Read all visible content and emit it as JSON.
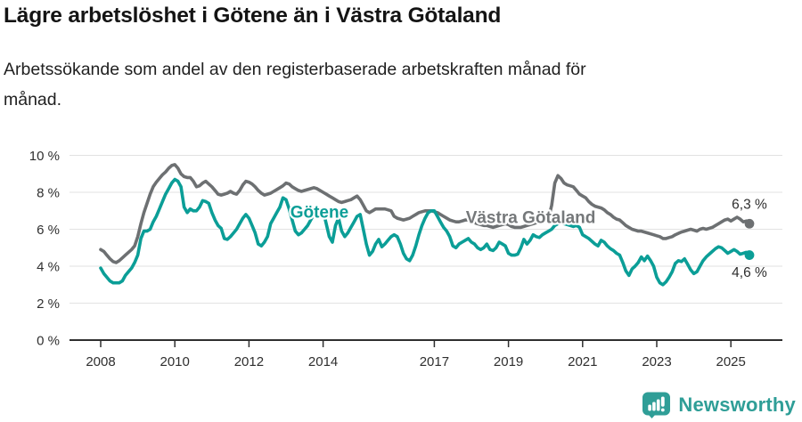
{
  "header": {
    "title": "Lägre arbetslöshet i Götene än i Västra Götaland",
    "subtitle_lines": [
      "Arbetssökande som andel av den registerbaserade arbetskraften månad för",
      "månad."
    ]
  },
  "chart_data": {
    "type": "line",
    "title": "Lägre arbetslöshet i Götene än i Västra Götaland",
    "subtitle": "Arbetssökande som andel av den registerbaserade arbetskraften månad för månad.",
    "x_unit": "monthly, decimal years",
    "x_start_year": 2008,
    "points_per_year": 12,
    "x_end": "2025-07",
    "ylim": [
      0,
      10
    ],
    "grid": true,
    "axis_color": "#2f2f2f",
    "grid_color": "#e2e2e2",
    "y_ticks": [
      {
        "v": 0,
        "label": "0 %"
      },
      {
        "v": 2,
        "label": "2 %"
      },
      {
        "v": 4,
        "label": "4 %"
      },
      {
        "v": 6,
        "label": "6 %"
      },
      {
        "v": 8,
        "label": "8 %"
      },
      {
        "v": 10,
        "label": "10 %"
      }
    ],
    "x_ticks": [
      {
        "v": 2008,
        "label": "2008"
      },
      {
        "v": 2010,
        "label": "2010"
      },
      {
        "v": 2012,
        "label": "2012"
      },
      {
        "v": 2014,
        "label": "2014"
      },
      {
        "v": 2017,
        "label": "2017"
      },
      {
        "v": 2019,
        "label": "2019"
      },
      {
        "v": 2021,
        "label": "2021"
      },
      {
        "v": 2023,
        "label": "2023"
      },
      {
        "v": 2025,
        "label": "2025"
      }
    ],
    "series": [
      {
        "name": "Västra Götaland",
        "slug": "vastra-gotaland",
        "color": "#6d7072",
        "label_color": "#75787a",
        "label_anchor": {
          "x": 2019.6,
          "y": 6.33
        },
        "end_label": "6,3 %",
        "end_label_anchor": {
          "x": 2025.5,
          "y": 7.1
        },
        "end_value": 6.3,
        "values": [
          4.9,
          4.8,
          4.6,
          4.4,
          4.25,
          4.2,
          4.3,
          4.45,
          4.6,
          4.75,
          4.9,
          5.1,
          5.6,
          6.3,
          6.9,
          7.4,
          7.9,
          8.3,
          8.55,
          8.75,
          8.95,
          9.1,
          9.3,
          9.45,
          9.5,
          9.3,
          9.0,
          8.85,
          8.8,
          8.8,
          8.6,
          8.3,
          8.35,
          8.5,
          8.6,
          8.45,
          8.3,
          8.1,
          7.9,
          7.85,
          7.9,
          7.95,
          8.05,
          7.95,
          7.9,
          8.1,
          8.4,
          8.6,
          8.55,
          8.45,
          8.3,
          8.1,
          7.95,
          7.85,
          7.9,
          7.95,
          8.05,
          8.15,
          8.25,
          8.35,
          8.5,
          8.45,
          8.3,
          8.2,
          8.1,
          8.05,
          8.1,
          8.15,
          8.2,
          8.25,
          8.2,
          8.1,
          8.0,
          7.9,
          7.8,
          7.7,
          7.6,
          7.5,
          7.45,
          7.5,
          7.55,
          7.6,
          7.7,
          7.8,
          7.6,
          7.3,
          7.0,
          6.9,
          7.0,
          7.1,
          7.1,
          7.1,
          7.1,
          7.05,
          7.0,
          6.7,
          6.6,
          6.55,
          6.5,
          6.55,
          6.6,
          6.7,
          6.8,
          6.9,
          6.95,
          7.0,
          7.0,
          7.0,
          6.95,
          6.9,
          6.8,
          6.7,
          6.6,
          6.5,
          6.45,
          6.4,
          6.4,
          6.45,
          6.5,
          6.5,
          6.4,
          6.35,
          6.3,
          6.25,
          6.2,
          6.2,
          6.15,
          6.1,
          6.15,
          6.2,
          6.25,
          6.3,
          6.25,
          6.15,
          6.1,
          6.1,
          6.1,
          6.15,
          6.2,
          6.25,
          6.3,
          6.35,
          6.4,
          6.45,
          6.5,
          6.6,
          7.3,
          8.5,
          8.9,
          8.75,
          8.5,
          8.4,
          8.35,
          8.3,
          8.1,
          7.9,
          7.8,
          7.7,
          7.5,
          7.35,
          7.25,
          7.2,
          7.15,
          7.05,
          6.9,
          6.8,
          6.65,
          6.55,
          6.5,
          6.35,
          6.2,
          6.1,
          6.0,
          5.95,
          5.9,
          5.9,
          5.85,
          5.8,
          5.75,
          5.7,
          5.65,
          5.6,
          5.5,
          5.5,
          5.55,
          5.6,
          5.7,
          5.78,
          5.85,
          5.9,
          5.95,
          6.0,
          5.95,
          5.9,
          6.0,
          6.05,
          6.0,
          6.05,
          6.1,
          6.2,
          6.3,
          6.4,
          6.5,
          6.55,
          6.45,
          6.55,
          6.65,
          6.55,
          6.4,
          6.45,
          6.3
        ]
      },
      {
        "name": "Götene",
        "slug": "gotene",
        "color": "#0b9e97",
        "label_color": "#0b9e97",
        "label_anchor": {
          "x": 2013.9,
          "y": 6.62
        },
        "end_label": "4,6 %",
        "end_label_anchor": {
          "x": 2025.5,
          "y": 3.42
        },
        "end_value": 4.6,
        "values": [
          3.9,
          3.6,
          3.4,
          3.2,
          3.1,
          3.1,
          3.1,
          3.2,
          3.5,
          3.7,
          3.9,
          4.2,
          4.6,
          5.5,
          5.9,
          5.9,
          6.0,
          6.4,
          6.7,
          7.1,
          7.5,
          7.9,
          8.2,
          8.5,
          8.7,
          8.6,
          8.3,
          7.2,
          6.9,
          7.1,
          7.0,
          7.0,
          7.2,
          7.55,
          7.5,
          7.4,
          6.9,
          6.5,
          6.2,
          6.05,
          5.5,
          5.45,
          5.6,
          5.8,
          6.0,
          6.3,
          6.6,
          6.8,
          6.6,
          6.2,
          5.8,
          5.2,
          5.1,
          5.3,
          5.6,
          6.3,
          6.6,
          6.9,
          7.2,
          7.7,
          7.6,
          7.1,
          6.5,
          5.9,
          5.7,
          5.8,
          6.0,
          6.2,
          6.5,
          6.8,
          7.0,
          7.1,
          7.0,
          6.3,
          5.6,
          5.3,
          6.2,
          6.6,
          5.9,
          5.6,
          5.8,
          6.1,
          6.4,
          6.7,
          6.8,
          6.0,
          5.2,
          4.6,
          4.8,
          5.2,
          5.45,
          5.05,
          5.2,
          5.4,
          5.6,
          5.7,
          5.6,
          5.2,
          4.7,
          4.4,
          4.3,
          4.6,
          5.1,
          5.7,
          6.2,
          6.6,
          6.9,
          7.0,
          7.0,
          6.7,
          6.4,
          6.1,
          5.9,
          5.6,
          5.1,
          5.0,
          5.2,
          5.3,
          5.4,
          5.5,
          5.3,
          5.2,
          5.0,
          4.9,
          5.0,
          5.2,
          4.9,
          4.85,
          5.0,
          5.3,
          5.2,
          5.1,
          4.7,
          4.6,
          4.6,
          4.65,
          5.0,
          5.45,
          5.2,
          5.4,
          5.7,
          5.6,
          5.55,
          5.7,
          5.8,
          5.9,
          6.0,
          6.2,
          6.3,
          6.35,
          6.3,
          6.25,
          6.2,
          6.15,
          6.2,
          6.1,
          5.7,
          5.6,
          5.5,
          5.35,
          5.2,
          5.1,
          5.4,
          5.3,
          5.1,
          4.95,
          4.85,
          4.7,
          4.6,
          4.2,
          3.75,
          3.5,
          3.85,
          4.0,
          4.2,
          4.5,
          4.3,
          4.55,
          4.3,
          4.0,
          3.4,
          3.1,
          3.0,
          3.15,
          3.4,
          3.7,
          4.15,
          4.3,
          4.25,
          4.4,
          4.1,
          3.8,
          3.6,
          3.7,
          4.0,
          4.3,
          4.5,
          4.65,
          4.8,
          4.95,
          5.05,
          5.0,
          4.85,
          4.7,
          4.8,
          4.9,
          4.8,
          4.65,
          4.7,
          4.75,
          4.6
        ]
      }
    ]
  },
  "footer": {
    "brand": "Newsworthy",
    "brand_color": "#2f9e97"
  }
}
